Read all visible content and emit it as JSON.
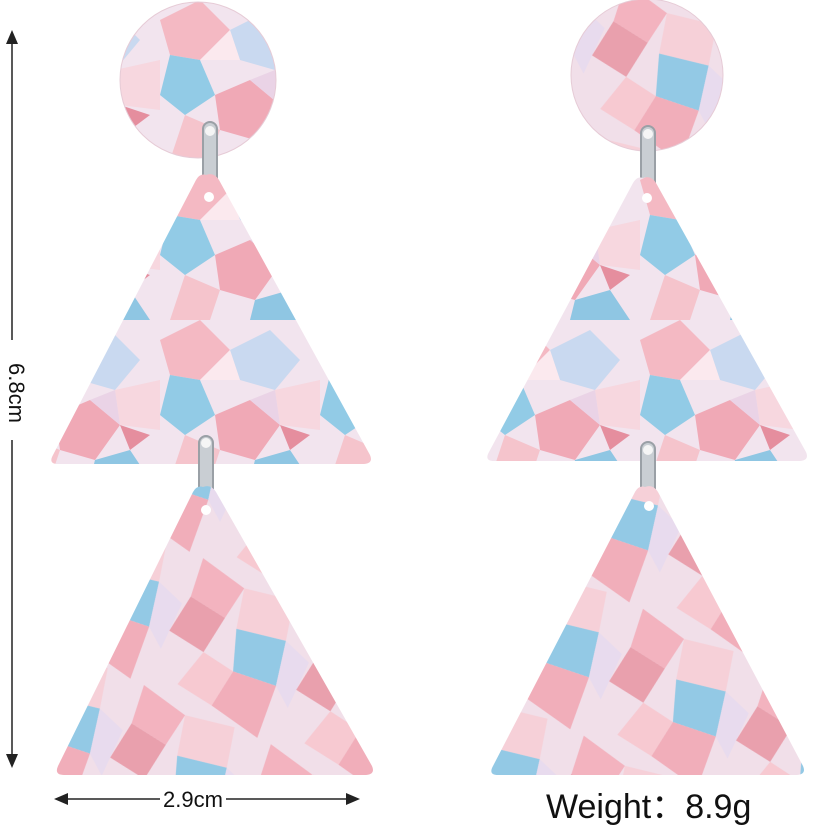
{
  "product": {
    "height_label": "6.8cm",
    "width_label": "2.9cm",
    "weight_label": "Weight：8.9g"
  },
  "colors": {
    "background": "#ffffff",
    "pink": "#f3b7bf",
    "blue": "#8ec9e6",
    "pearl": "#f2e9f1",
    "metal": "#c9ced3"
  }
}
